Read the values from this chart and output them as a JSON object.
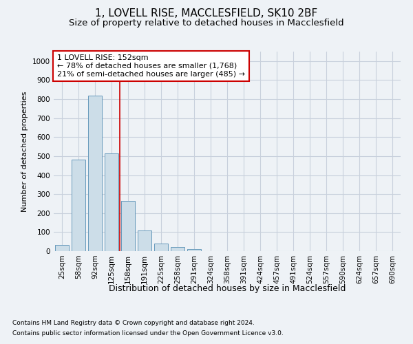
{
  "title1": "1, LOVELL RISE, MACCLESFIELD, SK10 2BF",
  "title2": "Size of property relative to detached houses in Macclesfield",
  "xlabel": "Distribution of detached houses by size in Macclesfield",
  "ylabel": "Number of detached properties",
  "categories": [
    "25sqm",
    "58sqm",
    "92sqm",
    "125sqm",
    "158sqm",
    "191sqm",
    "225sqm",
    "258sqm",
    "291sqm",
    "324sqm",
    "358sqm",
    "391sqm",
    "424sqm",
    "457sqm",
    "491sqm",
    "524sqm",
    "557sqm",
    "590sqm",
    "624sqm",
    "657sqm",
    "690sqm"
  ],
  "values": [
    33,
    480,
    820,
    515,
    263,
    110,
    40,
    20,
    10,
    0,
    0,
    0,
    0,
    0,
    0,
    0,
    0,
    0,
    0,
    0,
    0
  ],
  "bar_color": "#ccdde8",
  "bar_edge_color": "#6699bb",
  "annotation_text": "1 LOVELL RISE: 152sqm\n← 78% of detached houses are smaller (1,768)\n21% of semi-detached houses are larger (485) →",
  "annotation_box_color": "#ffffff",
  "annotation_box_edge_color": "#cc0000",
  "redline_x": 3.5,
  "ylim": [
    0,
    1050
  ],
  "yticks": [
    0,
    100,
    200,
    300,
    400,
    500,
    600,
    700,
    800,
    900,
    1000
  ],
  "footer1": "Contains HM Land Registry data © Crown copyright and database right 2024.",
  "footer2": "Contains public sector information licensed under the Open Government Licence v3.0.",
  "bg_color": "#eef2f6",
  "grid_color": "#c8d0dc",
  "title1_fontsize": 11,
  "title2_fontsize": 9.5,
  "ylabel_fontsize": 8,
  "xlabel_fontsize": 9,
  "tick_fontsize": 7.5,
  "annotation_fontsize": 8,
  "footer_fontsize": 6.5
}
